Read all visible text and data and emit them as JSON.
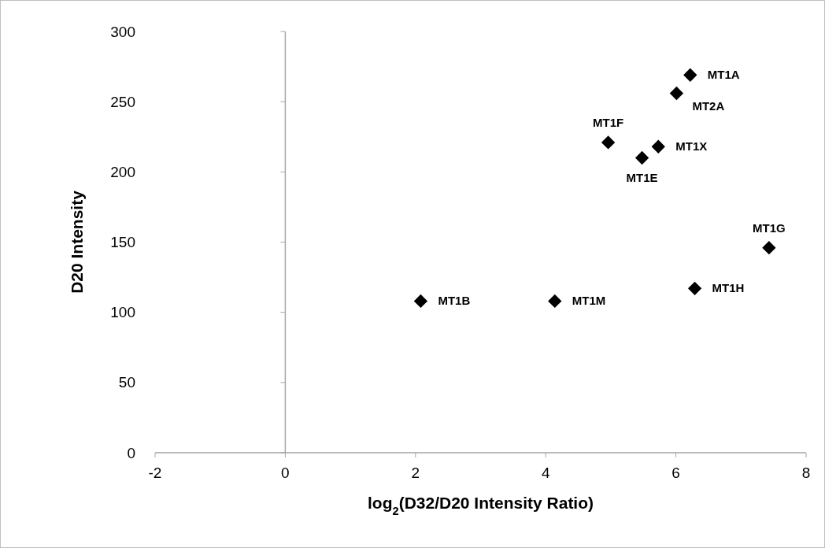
{
  "chart_data": {
    "type": "scatter",
    "xlabel": "log$_{2}$(D32/D20 Intensity Ratio)",
    "ylabel": "D20 Intensity",
    "x": [
      2.08,
      4.14,
      6.29,
      7.43,
      6.22,
      6.01,
      4.96,
      5.73,
      5.48
    ],
    "values": [
      108,
      108,
      117,
      146,
      269,
      256,
      221,
      218,
      210
    ],
    "color": "#000000",
    "marker": "diamond",
    "xlim": [
      -2,
      8
    ],
    "xticks": [
      -2,
      0,
      2,
      4,
      6,
      8
    ],
    "ylim": [
      0,
      300
    ],
    "yticks": [
      0,
      50,
      100,
      150,
      200,
      250,
      300
    ],
    "annotations": [
      {
        "text": "MT1B",
        "x": 2.08,
        "y": 108
      },
      {
        "text": "MT1M",
        "x": 4.14,
        "y": 108
      },
      {
        "text": "MT1H",
        "x": 6.29,
        "y": 117
      },
      {
        "text": "MT1G",
        "x": 7.43,
        "y": 146
      },
      {
        "text": "MT1A",
        "x": 6.22,
        "y": 269
      },
      {
        "text": "MT2A",
        "x": 6.01,
        "y": 256
      },
      {
        "text": "MT1F",
        "x": 4.96,
        "y": 221
      },
      {
        "text": "MT1X",
        "x": 5.73,
        "y": 218
      },
      {
        "text": "MT1E",
        "x": 5.48,
        "y": 210
      }
    ]
  }
}
